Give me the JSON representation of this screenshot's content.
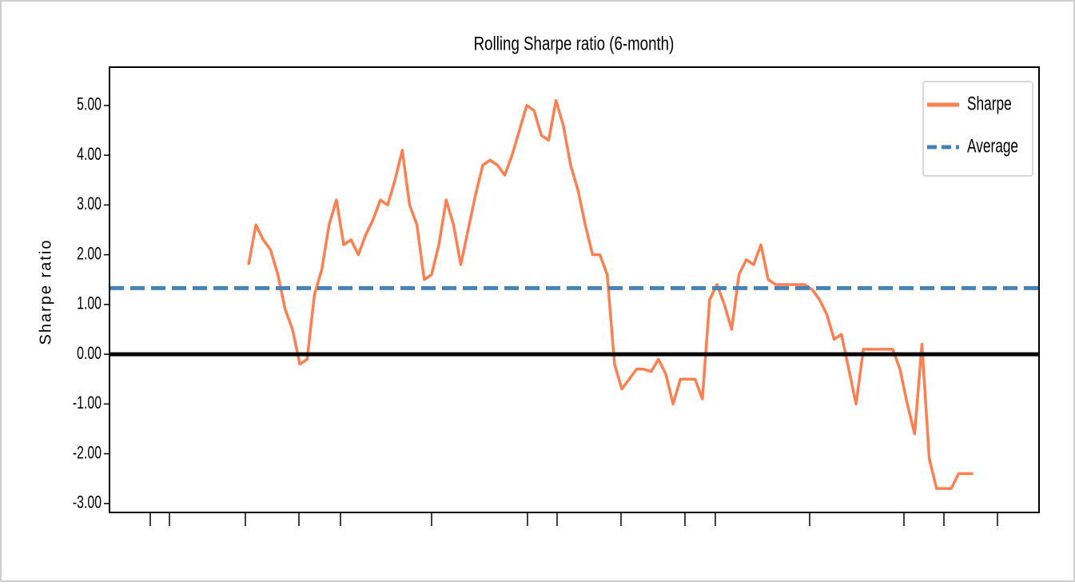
{
  "chart_data": {
    "type": "line",
    "title": "Rolling Sharpe ratio (6-month)",
    "y_label": "Sharpe ratio",
    "ylim": [
      -3.18,
      5.77
    ],
    "yticks": [
      {
        "value": -3,
        "label": "-3.00"
      },
      {
        "value": -2,
        "label": "-2.00"
      },
      {
        "value": -1,
        "label": "-1.00"
      },
      {
        "value": 0,
        "label": "0.00"
      },
      {
        "value": 1,
        "label": "1.00"
      },
      {
        "value": 2,
        "label": "2.00"
      },
      {
        "value": 3,
        "label": "3.00"
      },
      {
        "value": 4,
        "label": "4.00"
      },
      {
        "value": 5,
        "label": "5.00"
      }
    ],
    "legend": "upper right",
    "series": [
      {
        "name": "Sharpe",
        "color": "#ff7f50",
        "values": [
          null,
          null,
          null,
          null,
          null,
          null,
          null,
          null,
          null,
          null,
          null,
          null,
          null,
          null,
          null,
          null,
          null,
          null,
          null,
          1.8,
          2.6,
          2.3,
          2.1,
          1.6,
          0.9,
          0.5,
          -0.2,
          -0.1,
          1.2,
          1.7,
          2.6,
          3.1,
          2.2,
          2.3,
          2.0,
          2.4,
          2.7,
          3.1,
          3.0,
          3.5,
          4.1,
          3.0,
          2.6,
          1.5,
          1.6,
          2.2,
          3.1,
          2.6,
          1.8,
          2.5,
          3.2,
          3.8,
          3.9,
          3.8,
          3.6,
          4.0,
          4.5,
          5.0,
          4.9,
          4.4,
          4.3,
          5.1,
          4.6,
          3.8,
          3.3,
          2.6,
          2.0,
          2.0,
          1.6,
          -0.2,
          -0.7,
          -0.5,
          -0.3,
          -0.3,
          -0.35,
          -0.1,
          -0.4,
          -1.0,
          -0.5,
          -0.5,
          -0.5,
          -0.9,
          1.1,
          1.4,
          1.0,
          0.5,
          1.6,
          1.9,
          1.8,
          2.2,
          1.5,
          1.4,
          1.4,
          1.4,
          1.4,
          1.4,
          1.3,
          1.1,
          0.8,
          0.3,
          0.4,
          -0.3,
          -1.0,
          0.1,
          0.1,
          0.1,
          0.1,
          0.1,
          -0.3,
          -1.0,
          -1.6,
          0.2,
          -2.1,
          -2.7,
          -2.7,
          -2.7,
          -2.4,
          -2.4,
          -2.4,
          null,
          null,
          null,
          null,
          null,
          null,
          null,
          null,
          null
        ]
      }
    ],
    "hlines": [
      {
        "name": "Average",
        "value": 1.33,
        "color": "#4682b4",
        "dashed": true
      },
      {
        "value": 0,
        "color": "#000000",
        "dashed": false
      }
    ]
  }
}
